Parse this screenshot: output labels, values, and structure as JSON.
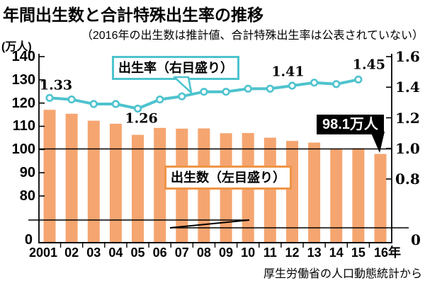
{
  "title": "年間出生数と合計特殊出生率の推移",
  "subtitle": "（2016年の出生数は推計値、合計特殊出生率は公表されていない）",
  "source": "厚生労働省の人口動態統計から",
  "colors": {
    "bar": "#F5A570",
    "line": "#4EC3CE",
    "marker_fill": "#FFFFFF",
    "rate_box_border": "#4EC3CE",
    "births_box_border": "#EE9546",
    "annotation_bg": "#000000",
    "annotation_text": "#FFFFFF",
    "axis": "#000000"
  },
  "legend": {
    "rate_label": "出生率（右目盛り）",
    "births_label": "出生数（左目盛り）"
  },
  "annotation": {
    "value_label": "98.1万人",
    "target_category": "16年"
  },
  "axes": {
    "left": {
      "unit": "(万人)",
      "tick_labels": [
        "140",
        "130",
        "120",
        "110",
        "100",
        "90",
        "80"
      ],
      "tick_values": [
        140,
        130,
        120,
        110,
        100,
        90,
        80
      ],
      "zero_label": "0",
      "axis_break": true
    },
    "right": {
      "tick_labels": [
        "1.6",
        "1.4",
        "1.2",
        "1.0",
        "0.8"
      ],
      "tick_values": [
        1.6,
        1.4,
        1.2,
        1.0,
        0.8
      ],
      "zero_label": "0",
      "axis_break": true
    }
  },
  "chart_data": {
    "type": "combo-bar-line",
    "categories": [
      "2001",
      "02",
      "03",
      "04",
      "05",
      "06",
      "07",
      "08",
      "09",
      "10",
      "11",
      "12",
      "13",
      "14",
      "15",
      "16年"
    ],
    "series": [
      {
        "name": "出生数（左目盛り）",
        "type": "bar",
        "axis": "left",
        "unit": "万人",
        "values": [
          117.1,
          115.4,
          112.4,
          111.1,
          106.3,
          109.3,
          109.0,
          109.1,
          107.0,
          107.1,
          105.1,
          103.7,
          103.0,
          100.4,
          100.6,
          98.1
        ]
      },
      {
        "name": "出生率（右目盛り）",
        "type": "line",
        "axis": "right",
        "values": [
          1.33,
          1.32,
          1.29,
          1.29,
          1.26,
          1.32,
          1.34,
          1.37,
          1.37,
          1.39,
          1.39,
          1.41,
          1.43,
          1.42,
          1.45,
          null
        ]
      }
    ],
    "point_labels": [
      {
        "series": 1,
        "index": 0,
        "text": "1.33"
      },
      {
        "series": 1,
        "index": 4,
        "text": "1.26"
      },
      {
        "series": 1,
        "index": 11,
        "text": "1.41"
      },
      {
        "series": 1,
        "index": 14,
        "text": "1.45"
      }
    ],
    "left_axis_display_range": [
      80,
      140
    ],
    "right_axis_display_range": [
      0.8,
      1.6
    ],
    "axis_break": true,
    "gridline_at_left_value": 100,
    "legend_position": "inside-plot"
  }
}
